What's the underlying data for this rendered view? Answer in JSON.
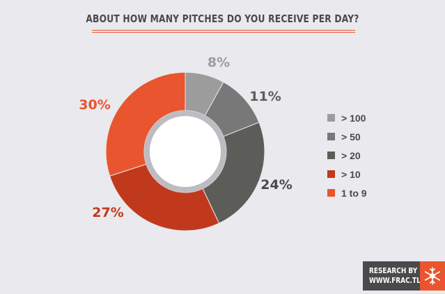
{
  "chart_data": {
    "type": "pie",
    "title": "ABOUT HOW MANY PITCHES DO YOU RECEIVE PER DAY?",
    "categories": [
      "> 100",
      "> 50",
      "> 20",
      "> 10",
      "1 to 9"
    ],
    "values": [
      8,
      11,
      24,
      27,
      30
    ],
    "labels": [
      "8%",
      "11%",
      "24%",
      "27%",
      "30%"
    ],
    "colors": [
      "#9c9c9c",
      "#787878",
      "#5c5c59",
      "#c1391d",
      "#e8552e"
    ],
    "donut": true,
    "legend_position": "right"
  },
  "branding": {
    "line1": "RESEARCH BY",
    "line2": "WWW.FRAC.TL",
    "logo": "snowflake-icon"
  }
}
